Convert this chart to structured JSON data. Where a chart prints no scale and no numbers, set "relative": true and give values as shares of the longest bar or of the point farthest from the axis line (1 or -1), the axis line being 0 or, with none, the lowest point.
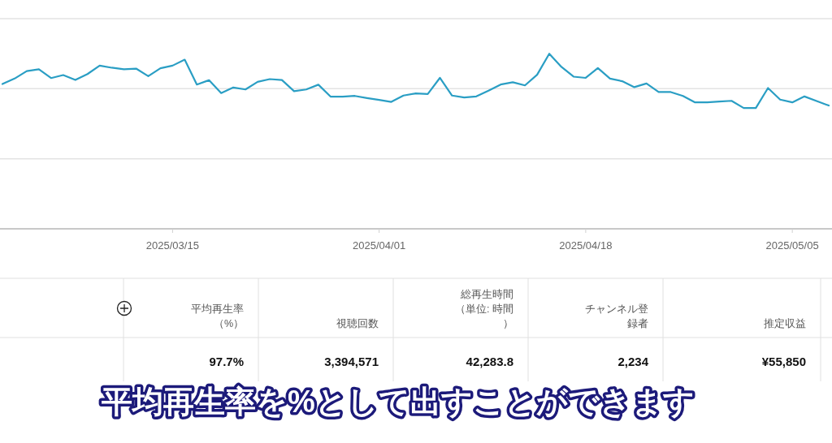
{
  "chart_data": {
    "type": "line",
    "relative": true,
    "marker": "none",
    "line_style": "solid",
    "x": [
      "2025-03-01",
      "2025-03-02",
      "2025-03-03",
      "2025-03-04",
      "2025-03-05",
      "2025-03-06",
      "2025-03-07",
      "2025-03-08",
      "2025-03-09",
      "2025-03-10",
      "2025-03-11",
      "2025-03-12",
      "2025-03-13",
      "2025-03-14",
      "2025-03-15",
      "2025-03-16",
      "2025-03-17",
      "2025-03-18",
      "2025-03-19",
      "2025-03-20",
      "2025-03-21",
      "2025-03-22",
      "2025-03-23",
      "2025-03-24",
      "2025-03-25",
      "2025-03-26",
      "2025-03-27",
      "2025-03-28",
      "2025-03-29",
      "2025-03-30",
      "2025-03-31",
      "2025-04-01",
      "2025-04-02",
      "2025-04-03",
      "2025-04-04",
      "2025-04-05",
      "2025-04-06",
      "2025-04-07",
      "2025-04-08",
      "2025-04-09",
      "2025-04-10",
      "2025-04-11",
      "2025-04-12",
      "2025-04-13",
      "2025-04-14",
      "2025-04-15",
      "2025-04-16",
      "2025-04-17",
      "2025-04-18",
      "2025-04-19",
      "2025-04-20",
      "2025-04-21",
      "2025-04-22",
      "2025-04-23",
      "2025-04-24",
      "2025-04-25",
      "2025-04-26",
      "2025-04-27",
      "2025-04-28",
      "2025-04-29",
      "2025-04-30",
      "2025-05-01",
      "2025-05-02",
      "2025-05-03",
      "2025-05-04",
      "2025-05-05",
      "2025-05-06",
      "2025-05-07",
      "2025-05-08"
    ],
    "series": [
      {
        "color": "#2a9ec4",
        "values": [
          0.827,
          0.858,
          0.901,
          0.911,
          0.861,
          0.878,
          0.85,
          0.884,
          0.932,
          0.92,
          0.911,
          0.915,
          0.872,
          0.917,
          0.932,
          0.966,
          0.824,
          0.849,
          0.775,
          0.807,
          0.796,
          0.839,
          0.855,
          0.85,
          0.786,
          0.796,
          0.823,
          0.755,
          0.755,
          0.759,
          0.747,
          0.736,
          0.725,
          0.761,
          0.773,
          0.77,
          0.862,
          0.761,
          0.75,
          0.756,
          0.789,
          0.824,
          0.837,
          0.819,
          0.88,
          1,
          0.925,
          0.869,
          0.862,
          0.918,
          0.858,
          0.843,
          0.809,
          0.83,
          0.781,
          0.781,
          0.759,
          0.722,
          0.722,
          0.727,
          0.731,
          0.69,
          0.69,
          0.804,
          0.738,
          0.722,
          0.756,
          0.73,
          0.704
        ]
      }
    ],
    "xlim": [
      "2025-03-01",
      "2025-05-08"
    ],
    "xticks": [
      {
        "value": "2025-03-15",
        "label": "2025/03/15"
      },
      {
        "value": "2025-04-01",
        "label": "2025/04/01"
      },
      {
        "value": "2025-04-18",
        "label": "2025/04/18"
      },
      {
        "value": "2025-05-05",
        "label": "2025/05/05"
      }
    ],
    "ref_lines": [
      {
        "axis": "y",
        "value": 0.4,
        "color": "#e3e3e3"
      },
      {
        "axis": "y",
        "value": 0.8,
        "color": "#e3e3e3"
      },
      {
        "axis": "y",
        "value": 1.2,
        "color": "#e3e3e3"
      }
    ],
    "annotations": [
      "平均再生率（%）",
      "視聴回数",
      "総再生時間（単位: 時間）",
      "チャンネル登録者",
      "推定収益",
      "97.7%",
      "3,394,571",
      "42,283.8",
      "2,234",
      "¥55,850",
      "平均再生率を%として出すことができます"
    ]
  }
}
